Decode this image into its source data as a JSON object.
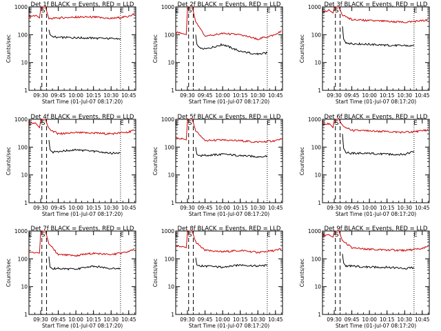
{
  "chart_data": [
    {
      "type": "line",
      "title": "Det 1f BLACK = Events, RED = LLD",
      "xlabel": "Start Time (01-Jul-07 08:17:20)",
      "ylabel": "Counts/sec",
      "yscale": "log",
      "ylim": [
        1,
        1000
      ],
      "x_ticks": [
        "09:30",
        "09:45",
        "10:00",
        "10:15",
        "10:30",
        "10:45"
      ],
      "markers": {
        "labels": [
          "E",
          "S",
          "E"
        ],
        "dashed": [
          "09:31",
          "09:35"
        ],
        "dotted": [
          "10:38"
        ]
      },
      "series": [
        {
          "name": "RED",
          "color": "#cc0000",
          "x": [
            "09:20",
            "09:26",
            "09:29",
            "09:30",
            "09:32",
            "09:34",
            "09:37",
            "09:45",
            "10:00",
            "10:15",
            "10:30",
            "10:45",
            "10:50"
          ],
          "y": [
            450,
            500,
            400,
            850,
            1000,
            1000,
            380,
            400,
            430,
            430,
            380,
            450,
            560
          ]
        },
        {
          "name": "BLACK",
          "color": "#000000",
          "x": [
            "09:37",
            "09:38",
            "09:40",
            "09:45",
            "10:00",
            "10:15",
            "10:30",
            "10:38"
          ],
          "y": [
            150,
            100,
            85,
            80,
            78,
            75,
            72,
            72
          ]
        }
      ]
    },
    {
      "type": "line",
      "title": "Det 2f BLACK = Events, RED = LLD",
      "xlabel": "Start Time (01-Jul-07 08:17:20)",
      "ylabel": "Counts/sec",
      "yscale": "log",
      "ylim": [
        1,
        1000
      ],
      "x_ticks": [
        "09:30",
        "09:45",
        "10:00",
        "10:15",
        "10:30",
        "10:45"
      ],
      "markers": {
        "labels": [
          "E",
          "S",
          "E"
        ],
        "dashed": [
          "09:31",
          "09:35"
        ],
        "dotted": [
          "10:38"
        ]
      },
      "series": [
        {
          "name": "RED",
          "color": "#cc0000",
          "x": [
            "09:20",
            "09:26",
            "09:29",
            "09:30",
            "09:32",
            "09:34",
            "09:37",
            "09:45",
            "10:00",
            "10:15",
            "10:30",
            "10:45",
            "10:50"
          ],
          "y": [
            120,
            110,
            100,
            800,
            1000,
            1000,
            300,
            90,
            110,
            100,
            70,
            100,
            140
          ]
        },
        {
          "name": "BLACK",
          "color": "#000000",
          "x": [
            "09:37",
            "09:38",
            "09:40",
            "09:45",
            "10:00",
            "10:15",
            "10:30",
            "10:38"
          ],
          "y": [
            100,
            45,
            35,
            30,
            45,
            25,
            20,
            22
          ]
        }
      ]
    },
    {
      "type": "line",
      "title": "Det 3f BLACK = Events, RED = LLD",
      "xlabel": "Start Time (01-Jul-07 08:17:20)",
      "ylabel": "Counts/sec",
      "yscale": "log",
      "ylim": [
        1,
        1000
      ],
      "x_ticks": [
        "09:30",
        "09:45",
        "10:00",
        "10:15",
        "10:30",
        "10:45"
      ],
      "markers": {
        "labels": [
          "E",
          "S",
          "E"
        ],
        "dashed": [
          "09:31",
          "09:35"
        ],
        "dotted": [
          "10:38"
        ]
      },
      "series": [
        {
          "name": "RED",
          "color": "#cc0000",
          "x": [
            "09:20",
            "09:26",
            "09:29",
            "09:30",
            "09:32",
            "09:34",
            "09:37",
            "09:45",
            "10:00",
            "10:15",
            "10:30",
            "10:45",
            "10:50"
          ],
          "y": [
            700,
            750,
            600,
            900,
            1000,
            1000,
            500,
            350,
            320,
            300,
            280,
            320,
            350
          ]
        },
        {
          "name": "BLACK",
          "color": "#000000",
          "x": [
            "09:37",
            "09:38",
            "09:40",
            "09:45",
            "10:00",
            "10:15",
            "10:30",
            "10:38"
          ],
          "y": [
            200,
            70,
            50,
            48,
            45,
            42,
            40,
            42
          ]
        }
      ]
    },
    {
      "type": "line",
      "title": "Det 4f BLACK = Events, RED = LLD",
      "xlabel": "Start Time (01-Jul-07 08:17:20)",
      "ylabel": "Counts/sec",
      "yscale": "log",
      "ylim": [
        1,
        1000
      ],
      "x_ticks": [
        "09:30",
        "09:45",
        "10:00",
        "10:15",
        "10:30",
        "10:45"
      ],
      "markers": {
        "labels": [
          "E",
          "S",
          "E"
        ],
        "dashed": [
          "09:31",
          "09:35"
        ],
        "dotted": [
          "10:38"
        ]
      },
      "series": [
        {
          "name": "RED",
          "color": "#cc0000",
          "x": [
            "09:20",
            "09:26",
            "09:29",
            "09:30",
            "09:32",
            "09:34",
            "09:37",
            "09:45",
            "10:00",
            "10:15",
            "10:30",
            "10:45",
            "10:50"
          ],
          "y": [
            700,
            700,
            500,
            900,
            1000,
            1000,
            450,
            300,
            330,
            320,
            300,
            350,
            400
          ]
        },
        {
          "name": "BLACK",
          "color": "#000000",
          "x": [
            "09:37",
            "09:38",
            "09:40",
            "09:45",
            "10:00",
            "10:15",
            "10:30",
            "10:38"
          ],
          "y": [
            180,
            80,
            65,
            70,
            80,
            70,
            60,
            62
          ]
        }
      ]
    },
    {
      "type": "line",
      "title": "Det 5f BLACK = Events, RED = LLD",
      "xlabel": "Start Time (01-Jul-07 08:17:20)",
      "ylabel": "Counts/sec",
      "yscale": "log",
      "ylim": [
        1,
        1000
      ],
      "x_ticks": [
        "09:30",
        "09:45",
        "10:00",
        "10:15",
        "10:30",
        "10:45"
      ],
      "markers": {
        "labels": [
          "E",
          "S",
          "E"
        ],
        "dashed": [
          "09:31",
          "09:35"
        ],
        "dotted": [
          "10:38"
        ]
      },
      "series": [
        {
          "name": "RED",
          "color": "#cc0000",
          "x": [
            "09:20",
            "09:26",
            "09:29",
            "09:30",
            "09:32",
            "09:34",
            "09:37",
            "09:45",
            "10:00",
            "10:15",
            "10:30",
            "10:45",
            "10:50"
          ],
          "y": [
            220,
            200,
            180,
            900,
            1000,
            1000,
            400,
            170,
            180,
            170,
            150,
            170,
            200
          ]
        },
        {
          "name": "BLACK",
          "color": "#000000",
          "x": [
            "09:37",
            "09:38",
            "09:40",
            "09:45",
            "10:00",
            "10:15",
            "10:30",
            "10:38"
          ],
          "y": [
            100,
            55,
            48,
            50,
            55,
            50,
            45,
            48
          ]
        }
      ]
    },
    {
      "type": "line",
      "title": "Det 6f BLACK = Events, RED = LLD",
      "xlabel": "Start Time (01-Jul-07 08:17:20)",
      "ylabel": "Counts/sec",
      "yscale": "log",
      "ylim": [
        1,
        1000
      ],
      "x_ticks": [
        "09:30",
        "09:45",
        "10:00",
        "10:15",
        "10:30",
        "10:45"
      ],
      "markers": {
        "labels": [
          "E",
          "S",
          "E"
        ],
        "dashed": [
          "09:31",
          "09:35"
        ],
        "dotted": [
          "10:38"
        ]
      },
      "series": [
        {
          "name": "RED",
          "color": "#cc0000",
          "x": [
            "09:20",
            "09:26",
            "09:29",
            "09:30",
            "09:32",
            "09:34",
            "09:37",
            "09:45",
            "10:00",
            "10:15",
            "10:30",
            "10:45",
            "10:50"
          ],
          "y": [
            700,
            700,
            500,
            900,
            1000,
            1000,
            600,
            400,
            380,
            360,
            340,
            380,
            420
          ]
        },
        {
          "name": "BLACK",
          "color": "#000000",
          "x": [
            "09:37",
            "09:38",
            "09:40",
            "09:45",
            "10:00",
            "10:15",
            "10:30",
            "10:38"
          ],
          "y": [
            300,
            90,
            65,
            60,
            60,
            55,
            55,
            70
          ]
        }
      ]
    },
    {
      "type": "line",
      "title": "Det 7f BLACK = Events, RED = LLD",
      "xlabel": "Start Time (01-Jul-07 08:17:20)",
      "ylabel": "Counts/sec",
      "yscale": "log",
      "ylim": [
        1,
        1000
      ],
      "x_ticks": [
        "09:30",
        "09:45",
        "10:00",
        "10:15",
        "10:30",
        "10:45"
      ],
      "markers": {
        "labels": [
          "E",
          "S",
          "E"
        ],
        "dashed": [
          "09:31",
          "09:35"
        ],
        "dotted": [
          "10:38"
        ]
      },
      "series": [
        {
          "name": "RED",
          "color": "#cc0000",
          "x": [
            "09:20",
            "09:26",
            "09:29",
            "09:30",
            "09:32",
            "09:34",
            "09:37",
            "09:45",
            "10:00",
            "10:15",
            "10:30",
            "10:45",
            "10:50"
          ],
          "y": [
            180,
            170,
            160,
            900,
            1000,
            1000,
            350,
            140,
            130,
            160,
            140,
            180,
            230
          ]
        },
        {
          "name": "BLACK",
          "color": "#000000",
          "x": [
            "09:37",
            "09:38",
            "09:40",
            "09:45",
            "10:00",
            "10:15",
            "10:30",
            "10:38"
          ],
          "y": [
            120,
            50,
            45,
            45,
            42,
            55,
            45,
            45
          ]
        }
      ]
    },
    {
      "type": "line",
      "title": "Det 8f BLACK = Events, RED = LLD",
      "xlabel": "Start Time (01-Jul-07 08:17:20)",
      "ylabel": "Counts/sec",
      "yscale": "log",
      "ylim": [
        1,
        1000
      ],
      "x_ticks": [
        "09:30",
        "09:45",
        "10:00",
        "10:15",
        "10:30",
        "10:45"
      ],
      "markers": {
        "labels": [
          "E",
          "S",
          "E"
        ],
        "dashed": [
          "09:31",
          "09:35"
        ],
        "dotted": [
          "10:38"
        ]
      },
      "series": [
        {
          "name": "RED",
          "color": "#cc0000",
          "x": [
            "09:20",
            "09:26",
            "09:29",
            "09:30",
            "09:32",
            "09:34",
            "09:37",
            "09:45",
            "10:00",
            "10:15",
            "10:30",
            "10:45",
            "10:50"
          ],
          "y": [
            300,
            280,
            250,
            900,
            1000,
            1000,
            400,
            200,
            180,
            200,
            170,
            200,
            230
          ]
        },
        {
          "name": "BLACK",
          "color": "#000000",
          "x": [
            "09:37",
            "09:38",
            "09:40",
            "09:45",
            "10:00",
            "10:15",
            "10:30",
            "10:38"
          ],
          "y": [
            110,
            60,
            55,
            55,
            50,
            60,
            55,
            58
          ]
        }
      ]
    },
    {
      "type": "line",
      "title": "Det 9f BLACK = Events, RED = LLD",
      "xlabel": "Start Time (01-Jul-07 08:17:20)",
      "ylabel": "Counts/sec",
      "yscale": "log",
      "ylim": [
        1,
        1000
      ],
      "x_ticks": [
        "09:30",
        "09:45",
        "10:00",
        "10:15",
        "10:30",
        "10:45"
      ],
      "markers": {
        "labels": [
          "E",
          "S",
          "E"
        ],
        "dashed": [
          "09:31",
          "09:35"
        ],
        "dotted": [
          "10:38"
        ]
      },
      "series": [
        {
          "name": "RED",
          "color": "#cc0000",
          "x": [
            "09:20",
            "09:26",
            "09:29",
            "09:30",
            "09:32",
            "09:34",
            "09:37",
            "09:45",
            "10:00",
            "10:15",
            "10:30",
            "10:45",
            "10:50"
          ],
          "y": [
            700,
            700,
            600,
            900,
            1000,
            1000,
            450,
            250,
            220,
            210,
            200,
            230,
            280
          ]
        },
        {
          "name": "BLACK",
          "color": "#000000",
          "x": [
            "09:37",
            "09:38",
            "09:40",
            "09:45",
            "10:00",
            "10:15",
            "10:30",
            "10:38"
          ],
          "y": [
            150,
            70,
            55,
            55,
            50,
            50,
            45,
            48
          ]
        }
      ]
    }
  ]
}
